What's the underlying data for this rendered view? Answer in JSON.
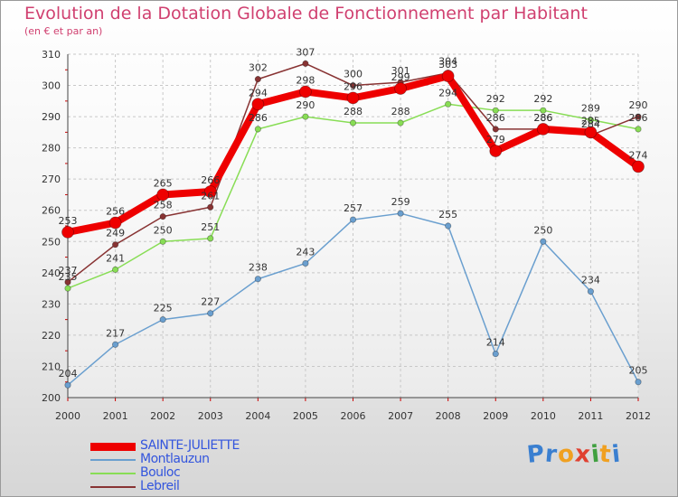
{
  "header": {
    "title": "Evolution de la Dotation Globale de Fonctionnement par Habitant",
    "subtitle": "(en € et par an)"
  },
  "logo": {
    "text": "Proxiti",
    "letters": [
      "P",
      "r",
      "o",
      "x",
      "i",
      "t",
      "i"
    ],
    "colors": [
      "#3a7fd0",
      "#3a7fd0",
      "#f0a020",
      "#e04030",
      "#40a040",
      "#f0a020",
      "#3a7fd0"
    ]
  },
  "chart_data": {
    "type": "line",
    "title": "Evolution de la Dotation Globale de Fonctionnement par Habitant",
    "subtitle": "(en € et par an)",
    "categories": [
      "2000",
      "2001",
      "2002",
      "2003",
      "2004",
      "2005",
      "2006",
      "2007",
      "2008",
      "2009",
      "2010",
      "2011",
      "2012"
    ],
    "ylim": [
      200,
      310
    ],
    "yticks": [
      200,
      210,
      220,
      230,
      240,
      250,
      260,
      270,
      280,
      290,
      300,
      310
    ],
    "grid": true,
    "legend_position": "bottom-left",
    "series": [
      {
        "name": "SAINTE-JULIETTE",
        "color": "#ee0000",
        "values": [
          253,
          256,
          265,
          266,
          294,
          298,
          296,
          299,
          303,
          279,
          286,
          285,
          274
        ]
      },
      {
        "name": "Montlauzun",
        "color": "#6a9fcf",
        "values": [
          204,
          217,
          225,
          227,
          238,
          243,
          257,
          259,
          255,
          214,
          250,
          234,
          205
        ]
      },
      {
        "name": "Bouloc",
        "color": "#88dd55",
        "values": [
          235,
          241,
          250,
          251,
          286,
          290,
          288,
          288,
          294,
          292,
          292,
          289,
          286
        ]
      },
      {
        "name": "Lebreil",
        "color": "#883333",
        "values": [
          237,
          249,
          258,
          261,
          302,
          307,
          300,
          301,
          304,
          286,
          286,
          284,
          290
        ]
      }
    ]
  }
}
